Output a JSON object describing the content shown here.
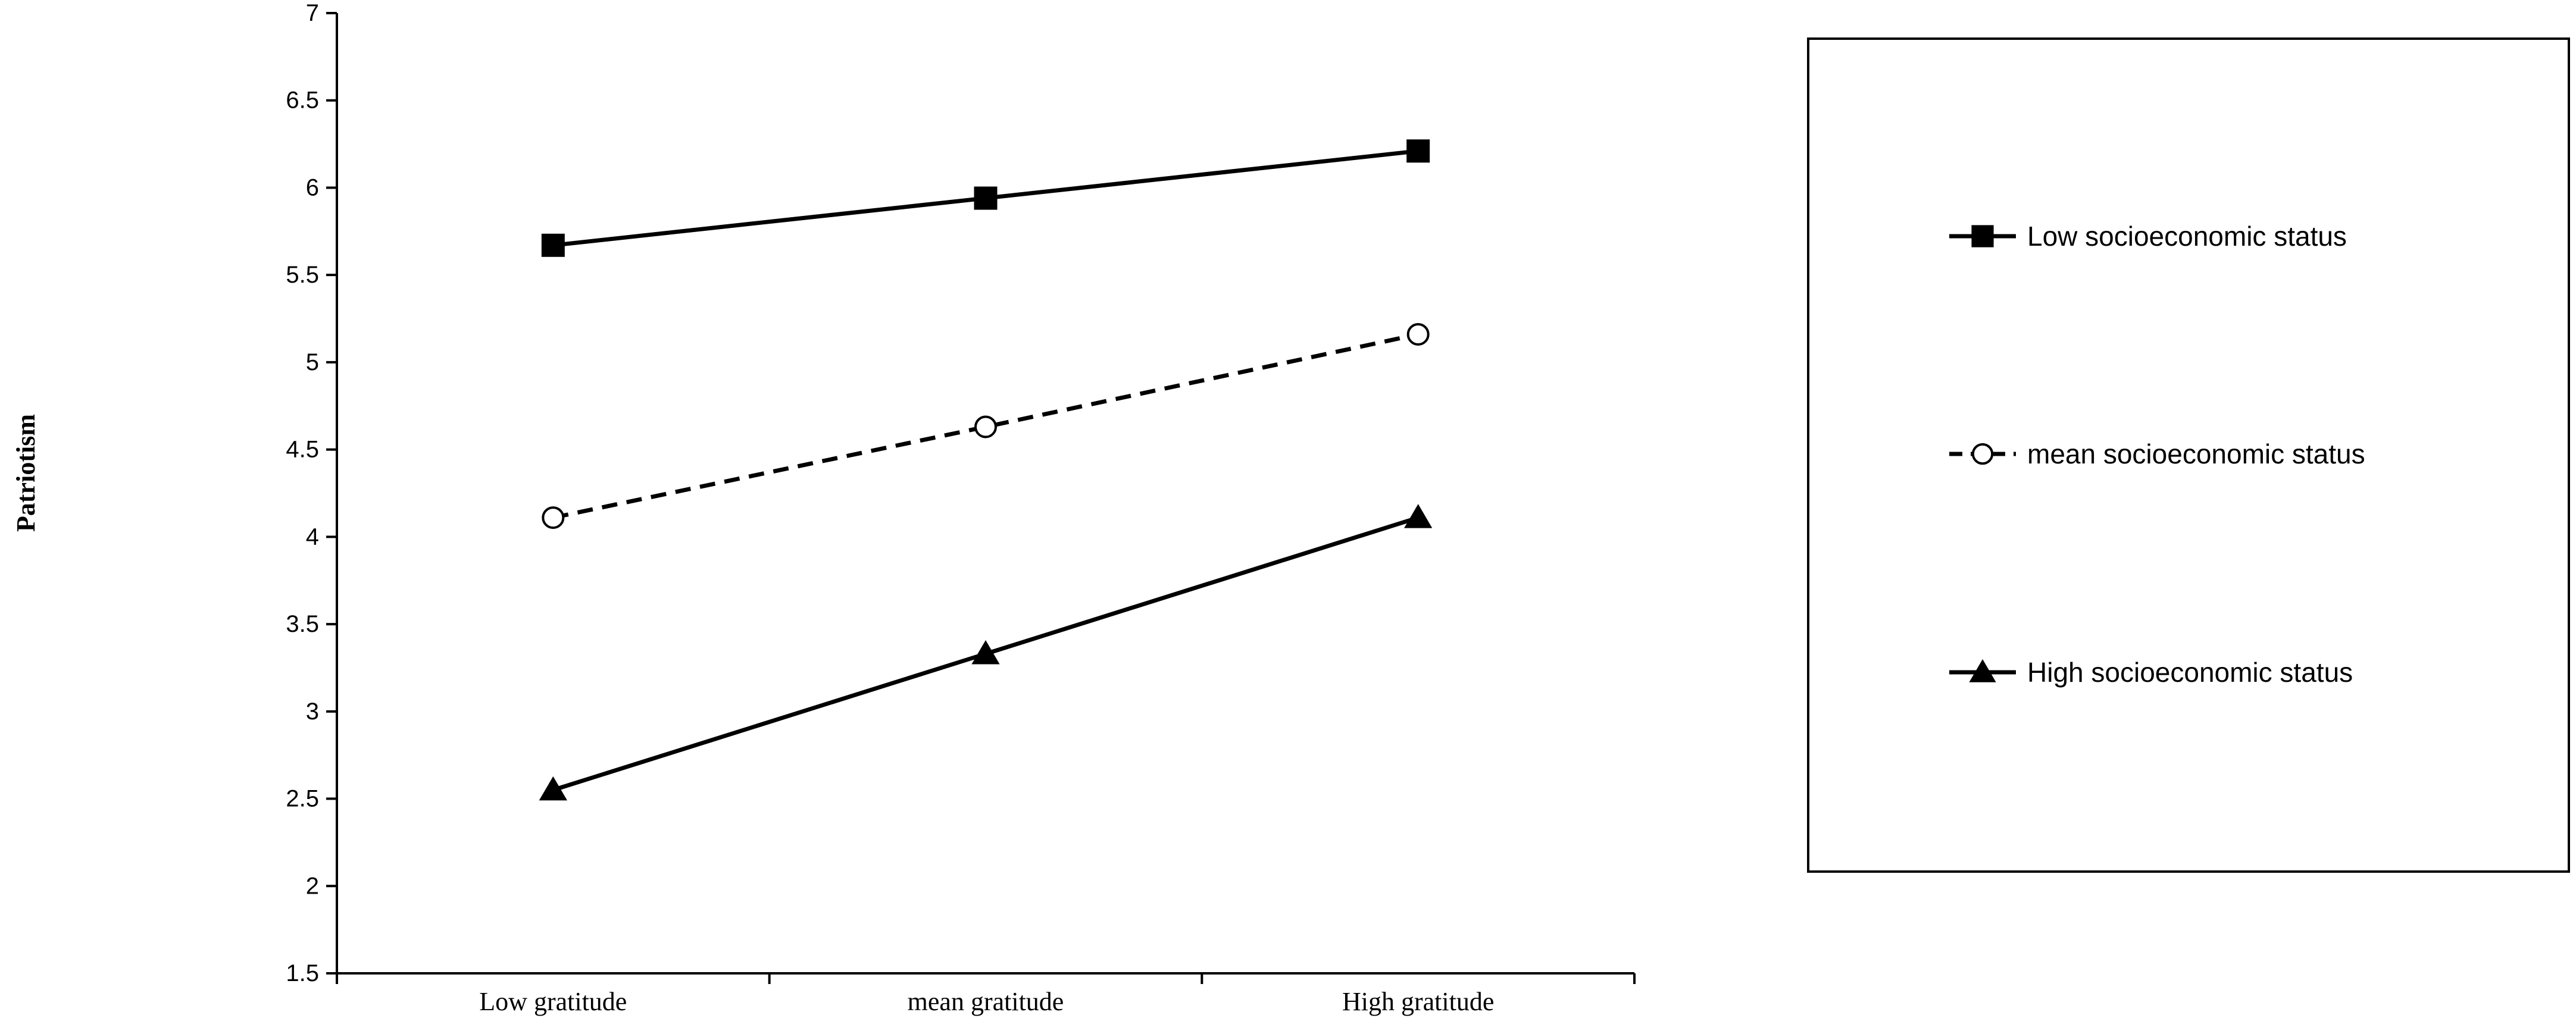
{
  "chart_data": {
    "type": "line",
    "title": "",
    "xlabel": "",
    "ylabel": "Patriotism",
    "categories": [
      "Low gratitude",
      "mean gratitude",
      "High gratitude"
    ],
    "ylim": [
      1.5,
      7
    ],
    "yticks": [
      1.5,
      2,
      2.5,
      3,
      3.5,
      4,
      4.5,
      5,
      5.5,
      6,
      6.5,
      7
    ],
    "grid": false,
    "legend_position": "right",
    "series": [
      {
        "name": "Low socioeconomic status",
        "values": [
          5.67,
          5.94,
          6.21
        ],
        "marker": "square",
        "marker_fill": "filled",
        "line_style": "solid",
        "color": "#000000"
      },
      {
        "name": "mean socioeconomic status",
        "values": [
          4.11,
          4.63,
          5.16
        ],
        "marker": "circle",
        "marker_fill": "hollow",
        "line_style": "dashed",
        "color": "#000000"
      },
      {
        "name": "High socioeconomic status",
        "values": [
          2.55,
          3.33,
          4.11
        ],
        "marker": "triangle",
        "marker_fill": "filled",
        "line_style": "solid",
        "color": "#000000"
      }
    ]
  }
}
